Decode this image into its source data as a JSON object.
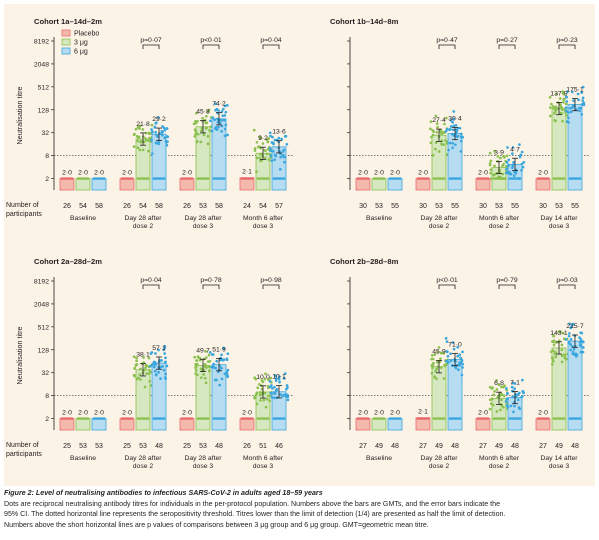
{
  "colors": {
    "placebo": "#e8696b",
    "placebo_fill": "#f4b9ad",
    "dose3": "#8cc04f",
    "dose3_fill": "#d5e8bf",
    "dose6": "#3aa6de",
    "dose6_fill": "#b6dcf1",
    "threshold_line": "#555555",
    "background": "#fbf3e6"
  },
  "legend": [
    {
      "key": "placebo",
      "label": "Placebo"
    },
    {
      "key": "dose3",
      "label": "3 μg"
    },
    {
      "key": "dose6",
      "label": "6 μg"
    }
  ],
  "ylabel": "Neutralisation titre",
  "row_label": [
    "Number of",
    "participants"
  ],
  "chart_data": [
    {
      "type": "bar",
      "title": "Cohort 1a–14d–2m",
      "ylabel": "Neutralisation titre",
      "yscale": "log2",
      "ylim": [
        1,
        8192
      ],
      "yticks": [
        "2",
        "8",
        "32",
        "128",
        "512",
        "2048",
        "8192"
      ],
      "threshold": 8,
      "groups": [
        {
          "label": [
            "Baseline"
          ],
          "bars": [
            {
              "series": "placebo",
              "gmt": 2.0,
              "gmt_label": "2·0",
              "n": "26"
            },
            {
              "series": "dose3",
              "gmt": 2.0,
              "gmt_label": "2·0",
              "n": "54"
            },
            {
              "series": "dose6",
              "gmt": 2.0,
              "gmt_label": "2·0",
              "n": "58"
            }
          ]
        },
        {
          "label": [
            "Day 28 after",
            "dose 2"
          ],
          "p": "p=0·07",
          "bars": [
            {
              "series": "placebo",
              "gmt": 2.0,
              "gmt_label": "2·0",
              "n": "26"
            },
            {
              "series": "dose3",
              "gmt": 21.8,
              "gmt_label": "21·8",
              "n": "54"
            },
            {
              "series": "dose6",
              "gmt": 29.2,
              "gmt_label": "29·2",
              "n": "58"
            }
          ]
        },
        {
          "label": [
            "Day 28 after",
            "dose 3"
          ],
          "p": "p<0·01",
          "bars": [
            {
              "series": "placebo",
              "gmt": 2.0,
              "gmt_label": "2·0",
              "n": "26"
            },
            {
              "series": "dose3",
              "gmt": 45.8,
              "gmt_label": "45·8",
              "n": "53"
            },
            {
              "series": "dose6",
              "gmt": 74.2,
              "gmt_label": "74·2",
              "n": "58"
            }
          ]
        },
        {
          "label": [
            "Month 6 after",
            "dose 3"
          ],
          "p": "p=0·04",
          "bars": [
            {
              "series": "placebo",
              "gmt": 2.1,
              "gmt_label": "2·1",
              "n": "24"
            },
            {
              "series": "dose3",
              "gmt": 9.2,
              "gmt_label": "9·2",
              "n": "54"
            },
            {
              "series": "dose6",
              "gmt": 13.6,
              "gmt_label": "13·6",
              "n": "57"
            }
          ]
        }
      ]
    },
    {
      "type": "bar",
      "title": "Cohort 1b–14d–8m",
      "yscale": "log2",
      "ylim": [
        1,
        8192
      ],
      "threshold": 8,
      "groups": [
        {
          "label": [
            "Baseline"
          ],
          "bars": [
            {
              "series": "placebo",
              "gmt": 2.0,
              "gmt_label": "2·0",
              "n": "30"
            },
            {
              "series": "dose3",
              "gmt": 2.0,
              "gmt_label": "2·0",
              "n": "53"
            },
            {
              "series": "dose6",
              "gmt": 2.0,
              "gmt_label": "2·0",
              "n": "55"
            }
          ]
        },
        {
          "label": [
            "Day 28 after",
            "dose 2"
          ],
          "p": "p=0·47",
          "bars": [
            {
              "series": "placebo",
              "gmt": 2.0,
              "gmt_label": "2·0",
              "n": "30"
            },
            {
              "series": "dose3",
              "gmt": 27.4,
              "gmt_label": "27·4",
              "n": "53"
            },
            {
              "series": "dose6",
              "gmt": 30.4,
              "gmt_label": "30·4",
              "n": "55"
            }
          ]
        },
        {
          "label": [
            "Month 6 after",
            "dose 2"
          ],
          "p": "p=0·27",
          "bars": [
            {
              "series": "placebo",
              "gmt": 2.0,
              "gmt_label": "2·0",
              "n": "30"
            },
            {
              "series": "dose3",
              "gmt": 3.9,
              "gmt_label": "3·9",
              "n": "53"
            },
            {
              "series": "dose6",
              "gmt": 4.7,
              "gmt_label": "4·7",
              "n": "55"
            }
          ]
        },
        {
          "label": [
            "Day 14 after",
            "dose 3"
          ],
          "p": "p=0·23",
          "bars": [
            {
              "series": "placebo",
              "gmt": 2.0,
              "gmt_label": "2·0",
              "n": "30"
            },
            {
              "series": "dose3",
              "gmt": 137.9,
              "gmt_label": "137·9",
              "n": "53"
            },
            {
              "series": "dose6",
              "gmt": 175.1,
              "gmt_label": "175·1",
              "n": "55"
            }
          ]
        }
      ]
    },
    {
      "type": "bar",
      "title": "Cohort 2a–28d–2m",
      "ylabel": "Neutralisation titre",
      "yscale": "log2",
      "ylim": [
        1,
        8192
      ],
      "yticks": [
        "2",
        "8",
        "32",
        "128",
        "512",
        "2048",
        "8192"
      ],
      "threshold": 8,
      "groups": [
        {
          "label": [
            "Baseline"
          ],
          "bars": [
            {
              "series": "placebo",
              "gmt": 2.0,
              "gmt_label": "2·0",
              "n": "25"
            },
            {
              "series": "dose3",
              "gmt": 2.0,
              "gmt_label": "2·0",
              "n": "53"
            },
            {
              "series": "dose6",
              "gmt": 2.0,
              "gmt_label": "2·0",
              "n": "53"
            }
          ]
        },
        {
          "label": [
            "Day 28 after",
            "dose 2"
          ],
          "p": "p=0·04",
          "bars": [
            {
              "series": "placebo",
              "gmt": 2.0,
              "gmt_label": "2·0",
              "n": "25"
            },
            {
              "series": "dose3",
              "gmt": 38.1,
              "gmt_label": "38·1",
              "n": "53"
            },
            {
              "series": "dose6",
              "gmt": 57.1,
              "gmt_label": "57·1",
              "n": "48"
            }
          ]
        },
        {
          "label": [
            "Day 28 after",
            "dose 3"
          ],
          "p": "p=0·78",
          "bars": [
            {
              "series": "placebo",
              "gmt": 2.0,
              "gmt_label": "2·0",
              "n": "25"
            },
            {
              "series": "dose3",
              "gmt": 49.7,
              "gmt_label": "49·7",
              "n": "53"
            },
            {
              "series": "dose6",
              "gmt": 51.9,
              "gmt_label": "51·9",
              "n": "48"
            }
          ]
        },
        {
          "label": [
            "Month 6 after",
            "dose 3"
          ],
          "p": "p=0·98",
          "bars": [
            {
              "series": "placebo",
              "gmt": 2.0,
              "gmt_label": "2·0",
              "n": "26"
            },
            {
              "series": "dose3",
              "gmt": 10.0,
              "gmt_label": "10·0",
              "n": "51"
            },
            {
              "series": "dose6",
              "gmt": 10.1,
              "gmt_label": "10·1",
              "n": "46"
            }
          ]
        }
      ]
    },
    {
      "type": "bar",
      "title": "Cohort 2b–28d–8m",
      "yscale": "log2",
      "ylim": [
        1,
        8192
      ],
      "threshold": 8,
      "groups": [
        {
          "label": [
            "Baseline"
          ],
          "bars": [
            {
              "series": "placebo",
              "gmt": 2.0,
              "gmt_label": "2·0",
              "n": "27"
            },
            {
              "series": "dose3",
              "gmt": 2.0,
              "gmt_label": "2·0",
              "n": "49"
            },
            {
              "series": "dose6",
              "gmt": 2.0,
              "gmt_label": "2·0",
              "n": "48"
            }
          ]
        },
        {
          "label": [
            "Day 28 after",
            "dose 2"
          ],
          "p": "p<0·01",
          "bars": [
            {
              "series": "placebo",
              "gmt": 2.1,
              "gmt_label": "2·1",
              "n": "27"
            },
            {
              "series": "dose3",
              "gmt": 45.9,
              "gmt_label": "45·9",
              "n": "49"
            },
            {
              "series": "dose6",
              "gmt": 71.0,
              "gmt_label": "71·0",
              "n": "48"
            }
          ]
        },
        {
          "label": [
            "Month 6 after",
            "dose 2"
          ],
          "p": "p=0·79",
          "bars": [
            {
              "series": "placebo",
              "gmt": 2.0,
              "gmt_label": "2·0",
              "n": "27"
            },
            {
              "series": "dose3",
              "gmt": 6.8,
              "gmt_label": "6·8",
              "n": "49"
            },
            {
              "series": "dose6",
              "gmt": 7.1,
              "gmt_label": "7·1",
              "n": "48"
            }
          ]
        },
        {
          "label": [
            "Day 14 after",
            "dose 3"
          ],
          "p": "p=0·03",
          "bars": [
            {
              "series": "placebo",
              "gmt": 2.0,
              "gmt_label": "2·0",
              "n": "27"
            },
            {
              "series": "dose3",
              "gmt": 143.1,
              "gmt_label": "143·1",
              "n": "49"
            },
            {
              "series": "dose6",
              "gmt": 215.7,
              "gmt_label": "215·7",
              "n": "48"
            }
          ]
        }
      ]
    }
  ],
  "caption": {
    "title": "Figure 2: Level of neutralising antibodies to infectious SARS-CoV-2 in adults aged 18–59 years",
    "lines": [
      "Dots are reciprocal neutralising antibody titres for individuals in the per-protocol population. Numbers above the bars are GMTs, and the error bars indicate the",
      "95% CI. The dotted horizontal line represents the seropositivity threshold. Titres lower than the limit of detection (1/4) are presented as half the limit of detection.",
      "Numbers above the short horizontal lines are p values of comparisons between 3 μg group and 6 μg group. GMT=geometric mean titre."
    ]
  }
}
